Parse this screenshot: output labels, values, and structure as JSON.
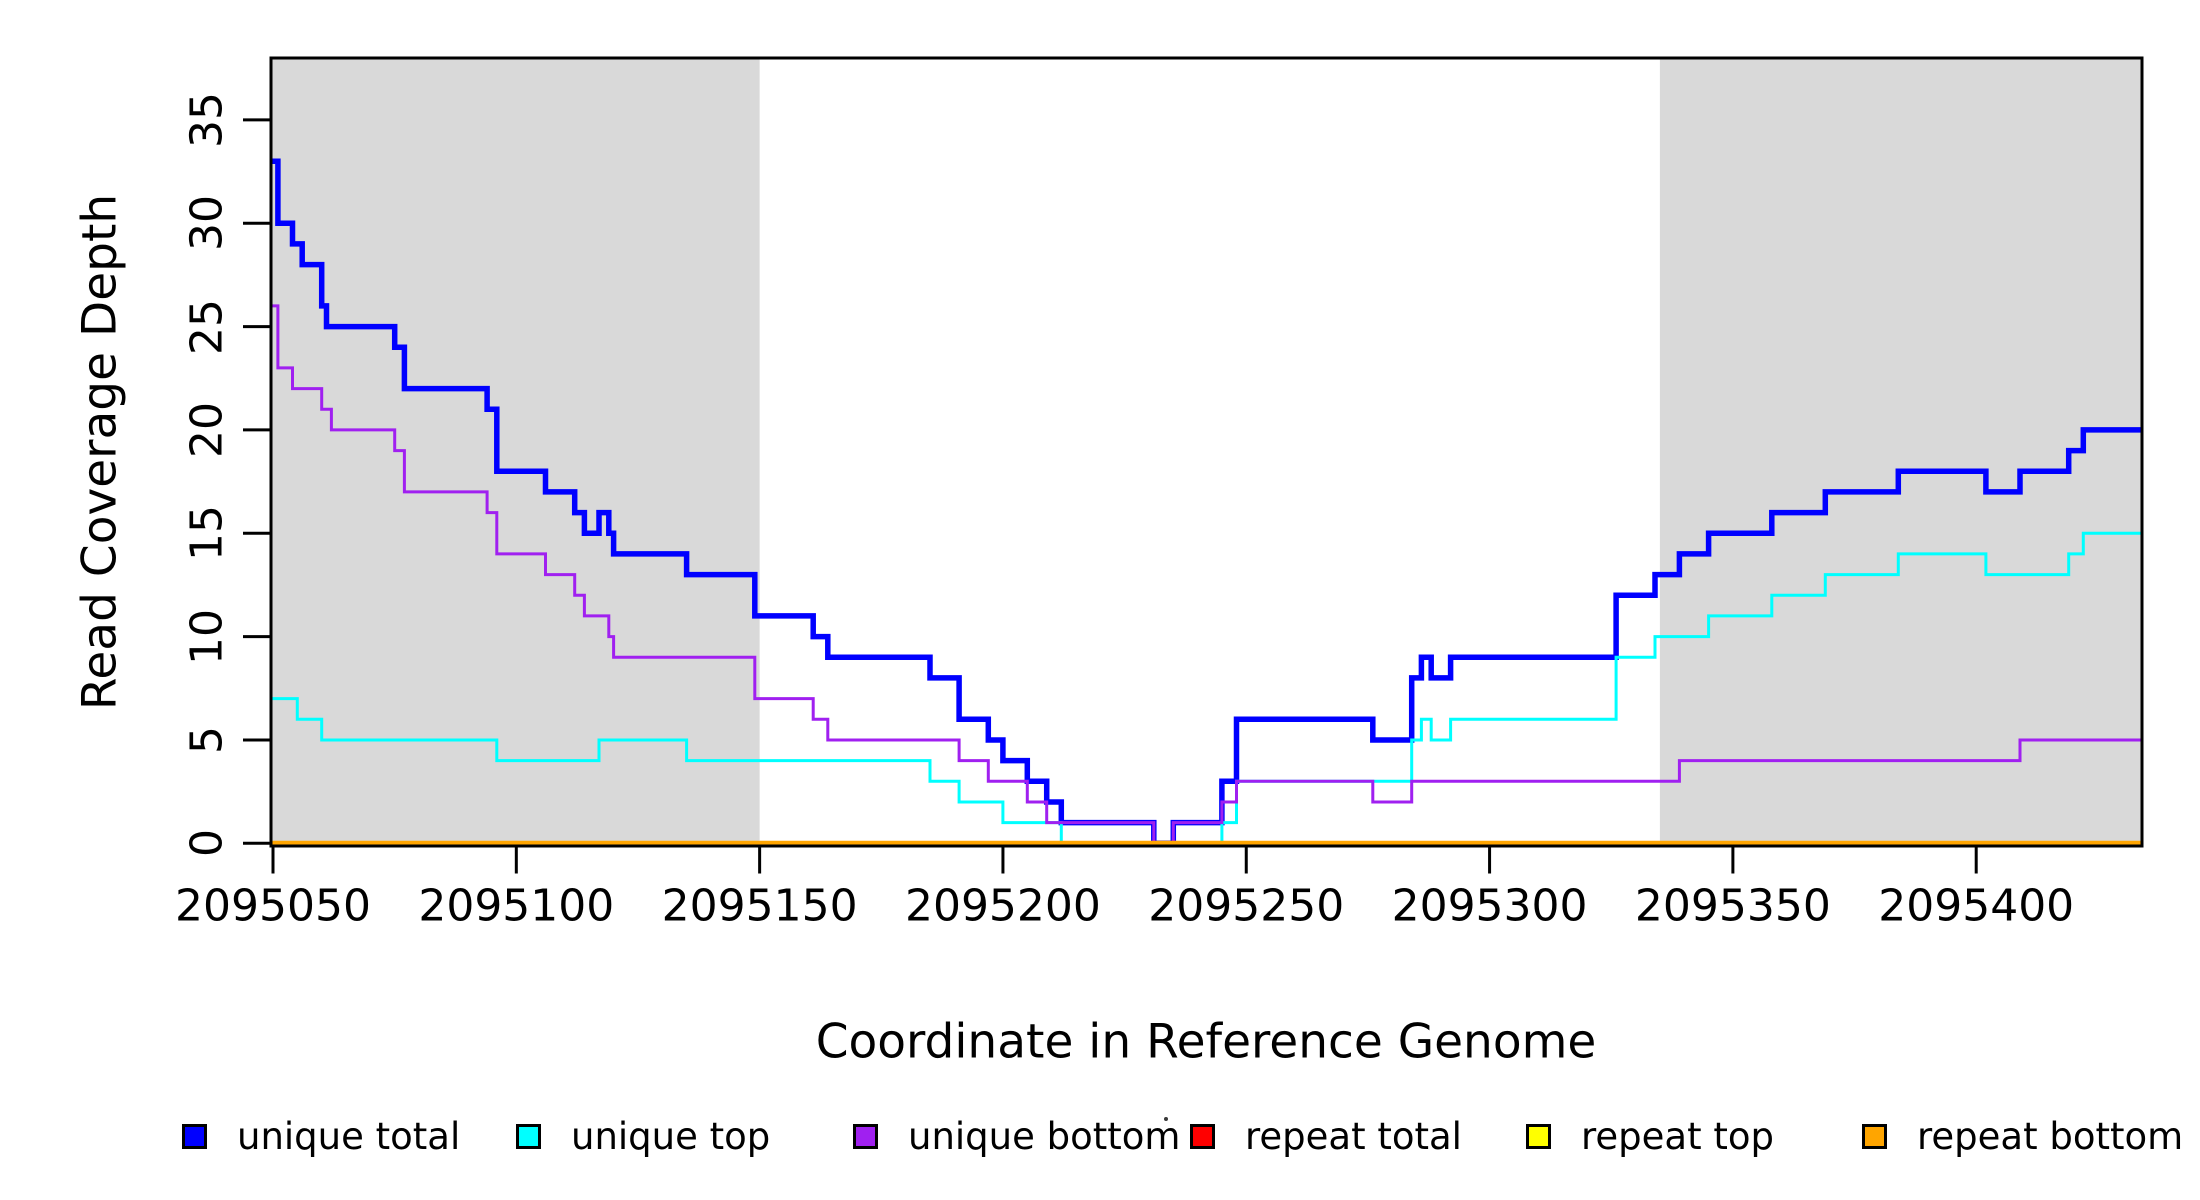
{
  "chart_data": {
    "type": "line",
    "subtype": "step-coverage",
    "title": "",
    "xlabel": "Coordinate in Reference Genome",
    "ylabel": "Read Coverage Depth",
    "xlim": [
      2095049.5,
      2095434
    ],
    "ylim": [
      0,
      38
    ],
    "grid": false,
    "legend_position": "bottom",
    "background_color": "#FFFFFF",
    "shade_color": "#D9D9D9",
    "x_ticks": [
      2095050,
      2095100,
      2095150,
      2095200,
      2095250,
      2095300,
      2095350,
      2095400
    ],
    "x_tick_labels": [
      "2095050",
      "2095100",
      "2095150",
      "2095200",
      "2095250",
      "2095300",
      "2095350",
      "2095400"
    ],
    "y_ticks": [
      0,
      5,
      10,
      15,
      20,
      25,
      30,
      35
    ],
    "y_tick_labels": [
      "0",
      "5",
      "10",
      "15",
      "20",
      "25",
      "30",
      "35"
    ],
    "shaded_regions": [
      {
        "from": 2095049.5,
        "to": 2095150
      },
      {
        "from": 2095335,
        "to": 2095434
      }
    ],
    "series": [
      {
        "name": "unique total",
        "color": "#0000FF",
        "width": 5.5,
        "points": [
          [
            2095049.5,
            33
          ],
          [
            2095051,
            30
          ],
          [
            2095054,
            29
          ],
          [
            2095056,
            28
          ],
          [
            2095060,
            26
          ],
          [
            2095061,
            25
          ],
          [
            2095075,
            24
          ],
          [
            2095077,
            22
          ],
          [
            2095094,
            21
          ],
          [
            2095096,
            18
          ],
          [
            2095106,
            17
          ],
          [
            2095112,
            16
          ],
          [
            2095114,
            15
          ],
          [
            2095117,
            16
          ],
          [
            2095119,
            15
          ],
          [
            2095120,
            14
          ],
          [
            2095135,
            13
          ],
          [
            2095149,
            11
          ],
          [
            2095161,
            10
          ],
          [
            2095164,
            9
          ],
          [
            2095185,
            8
          ],
          [
            2095191,
            6
          ],
          [
            2095197,
            5
          ],
          [
            2095200,
            4
          ],
          [
            2095205,
            3
          ],
          [
            2095209,
            2
          ],
          [
            2095212,
            1
          ],
          [
            2095231,
            0
          ],
          [
            2095235,
            1
          ],
          [
            2095245,
            3
          ],
          [
            2095248,
            6
          ],
          [
            2095276,
            5
          ],
          [
            2095284,
            8
          ],
          [
            2095286,
            9
          ],
          [
            2095288,
            8
          ],
          [
            2095292,
            9
          ],
          [
            2095326,
            12
          ],
          [
            2095334,
            13
          ],
          [
            2095339,
            14
          ],
          [
            2095345,
            15
          ],
          [
            2095358,
            16
          ],
          [
            2095369,
            17
          ],
          [
            2095384,
            18
          ],
          [
            2095402,
            17
          ],
          [
            2095409,
            18
          ],
          [
            2095419,
            19
          ],
          [
            2095422,
            20
          ]
        ]
      },
      {
        "name": "unique top",
        "color": "#00FFFF",
        "width": 3,
        "points": [
          [
            2095049.5,
            7
          ],
          [
            2095055,
            6
          ],
          [
            2095060,
            5
          ],
          [
            2095096,
            4
          ],
          [
            2095117,
            5
          ],
          [
            2095135,
            4
          ],
          [
            2095185,
            3
          ],
          [
            2095191,
            2
          ],
          [
            2095200,
            1
          ],
          [
            2095212,
            0
          ],
          [
            2095245,
            1
          ],
          [
            2095248,
            3
          ],
          [
            2095284,
            5
          ],
          [
            2095286,
            6
          ],
          [
            2095288,
            5
          ],
          [
            2095292,
            6
          ],
          [
            2095326,
            9
          ],
          [
            2095334,
            10
          ],
          [
            2095345,
            11
          ],
          [
            2095358,
            12
          ],
          [
            2095369,
            13
          ],
          [
            2095384,
            14
          ],
          [
            2095402,
            13
          ],
          [
            2095419,
            14
          ],
          [
            2095422,
            15
          ]
        ]
      },
      {
        "name": "unique bottom",
        "color": "#A020F0",
        "width": 3,
        "points": [
          [
            2095049.5,
            26
          ],
          [
            2095051,
            23
          ],
          [
            2095054,
            22
          ],
          [
            2095060,
            21
          ],
          [
            2095062,
            20
          ],
          [
            2095075,
            19
          ],
          [
            2095077,
            17
          ],
          [
            2095094,
            16
          ],
          [
            2095096,
            14
          ],
          [
            2095106,
            13
          ],
          [
            2095112,
            12
          ],
          [
            2095114,
            11
          ],
          [
            2095119,
            10
          ],
          [
            2095120,
            9
          ],
          [
            2095149,
            7
          ],
          [
            2095161,
            6
          ],
          [
            2095164,
            5
          ],
          [
            2095191,
            4
          ],
          [
            2095197,
            3
          ],
          [
            2095205,
            2
          ],
          [
            2095209,
            1
          ],
          [
            2095231,
            0
          ],
          [
            2095235,
            1
          ],
          [
            2095245,
            2
          ],
          [
            2095248,
            3
          ],
          [
            2095276,
            2
          ],
          [
            2095284,
            3
          ],
          [
            2095339,
            4
          ],
          [
            2095409,
            5
          ]
        ]
      },
      {
        "name": "repeat total",
        "color": "#FF0000",
        "width": 3,
        "points": [
          [
            2095049.5,
            0
          ]
        ]
      },
      {
        "name": "repeat top",
        "color": "#FFFF00",
        "width": 3,
        "points": [
          [
            2095049.5,
            0
          ]
        ]
      },
      {
        "name": "repeat bottom",
        "color": "#FFA500",
        "width": 5,
        "points": [
          [
            2095049.5,
            0
          ]
        ]
      }
    ],
    "legend": [
      {
        "label": "unique total",
        "color": "#0000FF"
      },
      {
        "label": "unique top",
        "color": "#00FFFF"
      },
      {
        "label": "unique bottom",
        "color": "#A020F0"
      },
      {
        "label": "repeat total",
        "color": "#FF0000"
      },
      {
        "label": "repeat top",
        "color": "#FFFF00"
      },
      {
        "label": "repeat bottom",
        "color": "#FFA500"
      }
    ]
  }
}
